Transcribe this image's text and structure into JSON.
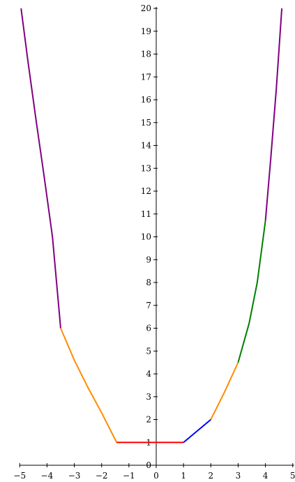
{
  "chart_data": {
    "type": "line",
    "title": "",
    "xlabel": "",
    "ylabel": "",
    "xlim": [
      -5,
      5
    ],
    "ylim": [
      0,
      20
    ],
    "x_ticks": [
      -5,
      -4,
      -3,
      -2,
      -1,
      0,
      1,
      2,
      3,
      4,
      5
    ],
    "y_ticks": [
      0,
      1,
      2,
      3,
      4,
      5,
      6,
      7,
      8,
      9,
      10,
      11,
      12,
      13,
      14,
      15,
      16,
      17,
      18,
      19,
      20
    ],
    "x_tick_labels": [
      "−5",
      "−4",
      "−3",
      "−2",
      "−1",
      "0",
      "1",
      "2",
      "3",
      "4",
      "5"
    ],
    "y_tick_labels": [
      "0",
      "1",
      "2",
      "3",
      "4",
      "5",
      "6",
      "7",
      "8",
      "9",
      "10",
      "11",
      "12",
      "13",
      "14",
      "15",
      "16",
      "17",
      "18",
      "19",
      "20"
    ],
    "grid": false,
    "series": [
      {
        "color": "#800080",
        "points": [
          [
            -4.95,
            20
          ],
          [
            -4.7,
            17.7
          ],
          [
            -4.4,
            15.1
          ],
          [
            -4.1,
            12.6
          ],
          [
            -3.8,
            10.0
          ],
          [
            -3.5,
            6.0
          ]
        ]
      },
      {
        "color": "#ff8c00",
        "points": [
          [
            -3.5,
            6.0
          ],
          [
            -3.0,
            4.6
          ],
          [
            -2.5,
            3.4
          ],
          [
            -2.0,
            2.3
          ],
          [
            -1.45,
            1.0
          ]
        ]
      },
      {
        "color": "#ff0000",
        "points": [
          [
            -1.45,
            1.0
          ],
          [
            1.0,
            1.0
          ]
        ]
      },
      {
        "color": "#0000ff",
        "points": [
          [
            1.0,
            1.0
          ],
          [
            2.0,
            2.0
          ]
        ]
      },
      {
        "color": "#ff8c00",
        "points": [
          [
            2.0,
            2.0
          ],
          [
            2.5,
            3.2
          ],
          [
            3.0,
            4.5
          ]
        ]
      },
      {
        "color": "#008000",
        "points": [
          [
            3.0,
            4.5
          ],
          [
            3.4,
            6.2
          ],
          [
            3.7,
            8.0
          ],
          [
            4.0,
            10.7
          ]
        ]
      },
      {
        "color": "#800080",
        "points": [
          [
            4.0,
            10.7
          ],
          [
            4.2,
            13.5
          ],
          [
            4.4,
            16.5
          ],
          [
            4.6,
            20.0
          ]
        ]
      }
    ]
  }
}
